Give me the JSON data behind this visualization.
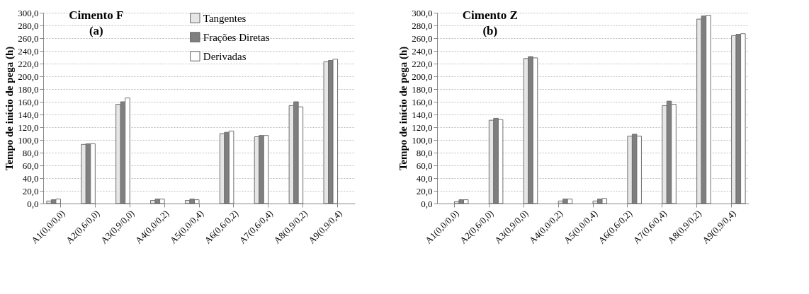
{
  "chart_data": [
    {
      "type": "bar",
      "title": "Cimento F",
      "subtitle": "(a)",
      "ylabel": "Tempo de início de pega (h)",
      "categories": [
        "A1(0,0/0,0)",
        "A2(0,6/0,0)",
        "A3(0,9/0,0)",
        "A4(0,0/0,2)",
        "A5(0,0/0,4)",
        "A6(0,6/0,2)",
        "A7(0,6/0,4)",
        "A8(0,9/0,2)",
        "A9(0,9/0,4)"
      ],
      "series": [
        {
          "name": "Tangentes",
          "color": "#e6e6e6",
          "values": [
            4,
            93,
            156,
            5,
            5,
            110,
            105,
            154,
            223
          ]
        },
        {
          "name": "Frações Diretas",
          "color": "#7f7f7f",
          "values": [
            6,
            94,
            160,
            7,
            7,
            112,
            107,
            160,
            225
          ]
        },
        {
          "name": "Derivadas",
          "color": "#ffffff",
          "values": [
            7,
            94,
            166,
            7,
            6,
            114,
            107,
            152,
            227
          ]
        }
      ],
      "ylim": [
        0,
        300
      ],
      "yticks": [
        {
          "value": 0,
          "label": "0,0"
        },
        {
          "value": 20,
          "label": "20,0"
        },
        {
          "value": 40,
          "label": "40,0"
        },
        {
          "value": 60,
          "label": "60,0"
        },
        {
          "value": 80,
          "label": "80,0"
        },
        {
          "value": 100,
          "label": "100,0"
        },
        {
          "value": 120,
          "label": "120,0"
        },
        {
          "value": 140,
          "label": "140,0"
        },
        {
          "value": 160,
          "label": "160,0"
        },
        {
          "value": 180,
          "label": "180,0"
        },
        {
          "value": 200,
          "label": "200,0"
        },
        {
          "value": 220,
          "label": "220,0"
        },
        {
          "value": 240,
          "label": "240,0"
        },
        {
          "value": 260,
          "label": "260,0"
        },
        {
          "value": 280,
          "label": "280,0"
        },
        {
          "value": 300,
          "label": "300,0"
        }
      ],
      "grid": "y",
      "legend": "top"
    },
    {
      "type": "bar",
      "title": "Cimento Z",
      "subtitle": "(b)",
      "ylabel": "Tempo de início de pega (h)",
      "categories": [
        "A1(0,0/0,0)",
        "A2(0,6/0,0)",
        "A3(0,9/0,0)",
        "A4(0,0/0,2)",
        "A5(0,0/0,4)",
        "A6(0,6/0,2)",
        "A7(0,6/0,4)",
        "A8(0,9/0,2)",
        "A9(0,9/0,4)"
      ],
      "series": [
        {
          "color": "#e6e6e6",
          "values": [
            3,
            131,
            228,
            4,
            4,
            106,
            154,
            290,
            264
          ]
        },
        {
          "color": "#7f7f7f",
          "values": [
            6,
            134,
            231,
            7,
            7,
            109,
            161,
            295,
            266
          ]
        },
        {
          "color": "#ffffff",
          "values": [
            6,
            132,
            229,
            7,
            8,
            106,
            156,
            296,
            267
          ]
        }
      ],
      "ylim": [
        0,
        300
      ],
      "yticks": [
        {
          "value": 0,
          "label": "0,0"
        },
        {
          "value": 20,
          "label": "20,0"
        },
        {
          "value": 40,
          "label": "40,0"
        },
        {
          "value": 60,
          "label": "60,0"
        },
        {
          "value": 80,
          "label": "80,0"
        },
        {
          "value": 100,
          "label": "100,0"
        },
        {
          "value": 120,
          "label": "120,0"
        },
        {
          "value": 140,
          "label": "140,0"
        },
        {
          "value": 160,
          "label": "160,0"
        },
        {
          "value": 180,
          "label": "180,0"
        },
        {
          "value": 200,
          "label": "200,0"
        },
        {
          "value": 220,
          "label": "220,0"
        },
        {
          "value": 240,
          "label": "240,0"
        },
        {
          "value": 260,
          "label": "260,0"
        },
        {
          "value": 280,
          "label": "280,0"
        },
        {
          "value": 300,
          "label": "300,0"
        }
      ],
      "grid": "y",
      "legend": false
    }
  ]
}
